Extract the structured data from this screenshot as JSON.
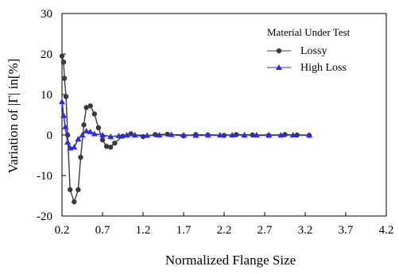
{
  "chart_data": {
    "type": "line",
    "xlabel": "Normalized  Flange Size",
    "ylabel": "Variation of |Γ| in[%]",
    "xlim": [
      0.2,
      4.2
    ],
    "ylim": [
      -20,
      30
    ],
    "x_ticks": [
      "0.2",
      "0.7",
      "1.2",
      "1.7",
      "2.2",
      "2.7",
      "3.2",
      "3.7",
      "4.2"
    ],
    "y_ticks": [
      "30",
      "20",
      "10",
      "0",
      "-10",
      "-20"
    ],
    "grid": false,
    "legend": {
      "title": "Material Under Test",
      "placement": "top-right",
      "entries": [
        "Lossy",
        "High Loss"
      ]
    },
    "series": [
      {
        "name": "Lossy",
        "color": "#3a3a3a",
        "marker": "circle",
        "x": [
          0.2,
          0.22,
          0.23,
          0.25,
          0.27,
          0.3,
          0.35,
          0.4,
          0.43,
          0.47,
          0.5,
          0.55,
          0.6,
          0.65,
          0.7,
          0.75,
          0.8,
          0.85,
          0.95,
          1.05,
          1.2,
          1.35,
          1.5,
          1.7,
          1.85,
          2.0,
          2.2,
          2.35,
          2.55,
          2.75,
          2.95,
          3.1,
          3.25
        ],
        "y": [
          19.5,
          18,
          14,
          9.5,
          0,
          -13.5,
          -16.5,
          -13.5,
          -5.5,
          2.5,
          6.8,
          7.2,
          5.2,
          1.8,
          -1.2,
          -2.8,
          -3.0,
          -2.0,
          -0.3,
          0.3,
          -0.4,
          0.1,
          0.2,
          -0.2,
          0.1,
          0.0,
          -0.1,
          0.1,
          0.0,
          -0.1,
          0.1,
          0.0,
          -0.1
        ]
      },
      {
        "name": "High Loss",
        "color": "#2828ff",
        "marker": "triangle",
        "x": [
          0.2,
          0.22,
          0.24,
          0.27,
          0.3,
          0.35,
          0.4,
          0.45,
          0.5,
          0.55,
          0.6,
          0.7,
          0.8,
          0.9,
          1.0,
          1.1,
          1.25,
          1.4,
          1.55,
          1.7,
          1.85,
          2.0,
          2.15,
          2.3,
          2.45,
          2.6,
          2.75,
          2.9,
          3.05,
          3.25
        ],
        "y": [
          8.2,
          4.8,
          2.0,
          -1.8,
          -3.2,
          -3.0,
          -1.0,
          0.0,
          1.0,
          0.8,
          0.3,
          0.0,
          -0.4,
          -0.2,
          0.0,
          0.0,
          -0.1,
          0.0,
          0.1,
          0.0,
          -0.1,
          0.0,
          0.0,
          0.0,
          0.0,
          0.0,
          0.0,
          0.0,
          0.0,
          0.0
        ]
      }
    ]
  }
}
